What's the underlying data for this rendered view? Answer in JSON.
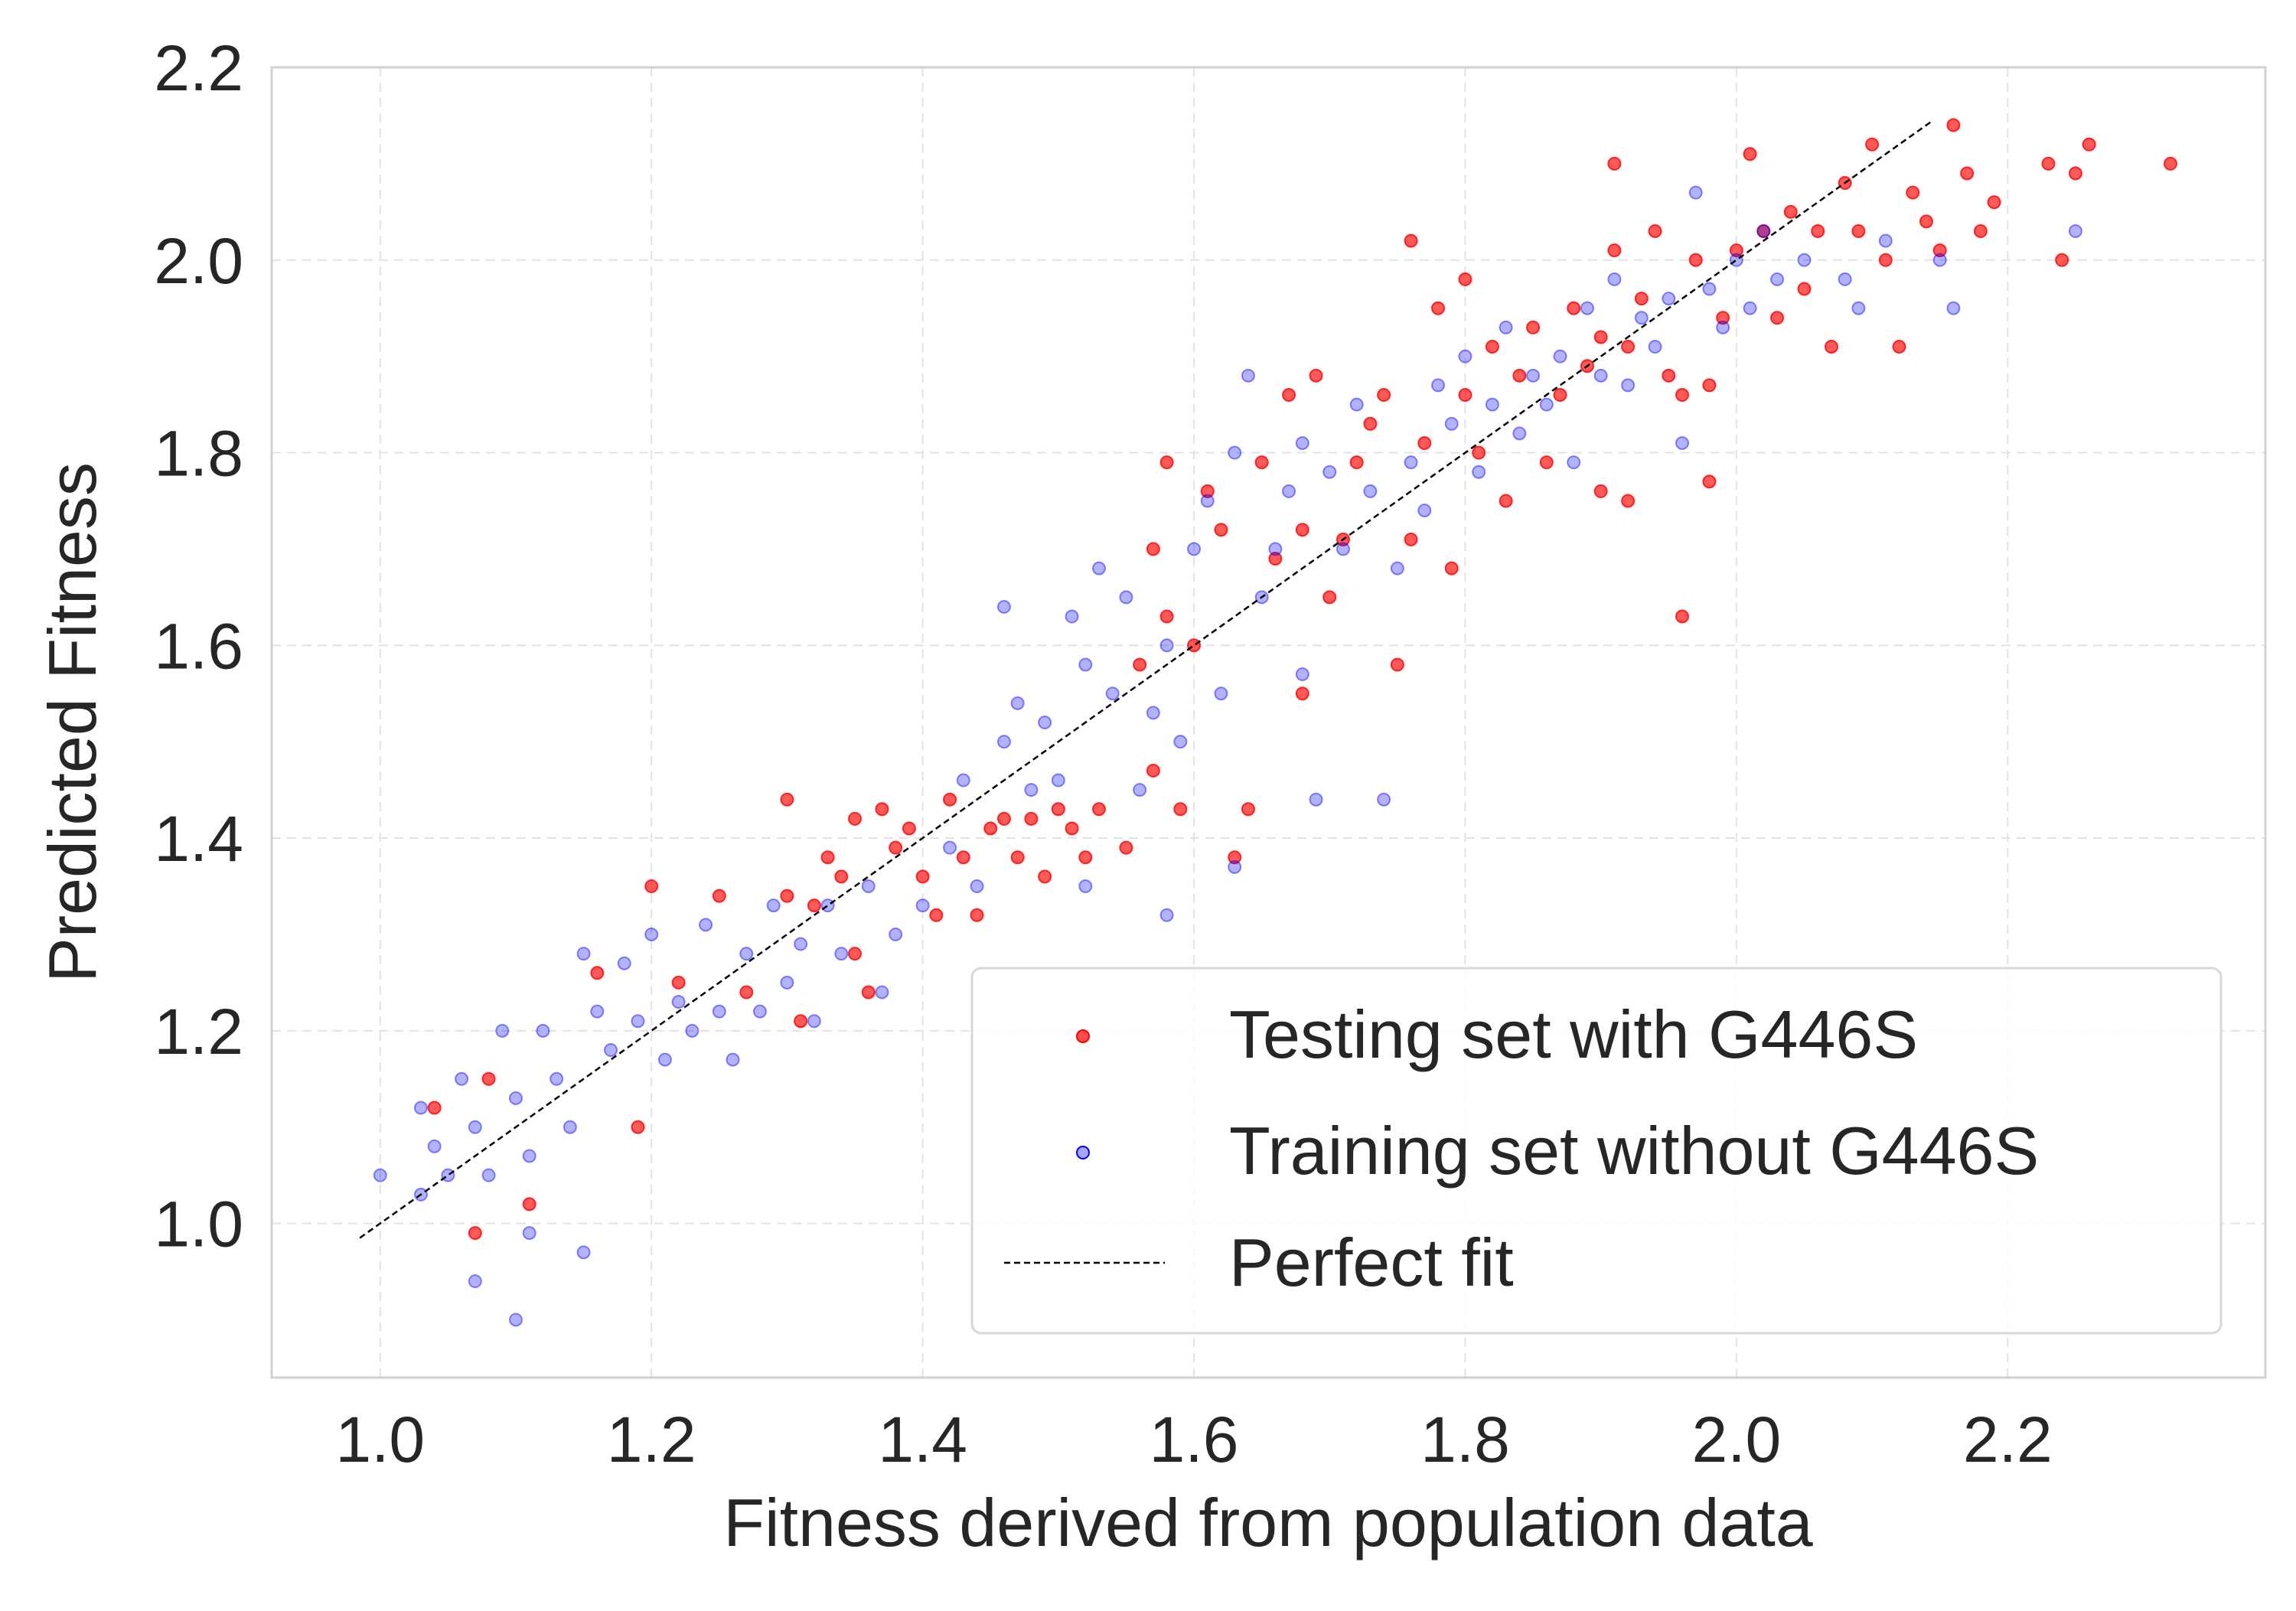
{
  "chart_data": {
    "type": "scatter",
    "xlabel": "Fitness derived from population data",
    "ylabel": "Predicted Fitness",
    "xlim": [
      0.92,
      2.39
    ],
    "ylim": [
      0.84,
      2.2
    ],
    "xticks": [
      "1.0",
      "1.2",
      "1.4",
      "1.6",
      "1.8",
      "2.0",
      "2.2"
    ],
    "yticks": [
      "1.0",
      "1.2",
      "1.4",
      "1.6",
      "1.8",
      "2.0",
      "2.2"
    ],
    "grid": true,
    "legend_position": "bottom-right",
    "colors": {
      "testing": "#ff0000",
      "training": "#0000ff",
      "perfect_fit": "#000000"
    },
    "series": [
      {
        "name": "Testing set with G446S",
        "kind": "scatter",
        "color": "#ff0000",
        "points": [
          [
            1.04,
            1.12
          ],
          [
            1.07,
            0.99
          ],
          [
            1.08,
            1.15
          ],
          [
            1.11,
            1.02
          ],
          [
            1.16,
            1.26
          ],
          [
            1.19,
            1.1
          ],
          [
            1.2,
            1.35
          ],
          [
            1.22,
            1.25
          ],
          [
            1.25,
            1.34
          ],
          [
            1.27,
            1.24
          ],
          [
            1.3,
            1.44
          ],
          [
            1.3,
            1.34
          ],
          [
            1.31,
            1.21
          ],
          [
            1.32,
            1.33
          ],
          [
            1.33,
            1.38
          ],
          [
            1.34,
            1.36
          ],
          [
            1.35,
            1.42
          ],
          [
            1.35,
            1.28
          ],
          [
            1.36,
            1.24
          ],
          [
            1.37,
            1.43
          ],
          [
            1.38,
            1.39
          ],
          [
            1.39,
            1.41
          ],
          [
            1.4,
            1.36
          ],
          [
            1.41,
            1.32
          ],
          [
            1.42,
            1.44
          ],
          [
            1.43,
            1.38
          ],
          [
            1.44,
            1.32
          ],
          [
            1.45,
            1.41
          ],
          [
            1.46,
            1.42
          ],
          [
            1.47,
            1.38
          ],
          [
            1.48,
            1.42
          ],
          [
            1.49,
            1.36
          ],
          [
            1.5,
            1.43
          ],
          [
            1.51,
            1.41
          ],
          [
            1.52,
            1.38
          ],
          [
            1.53,
            1.43
          ],
          [
            1.55,
            1.39
          ],
          [
            1.56,
            1.58
          ],
          [
            1.57,
            1.47
          ],
          [
            1.57,
            1.7
          ],
          [
            1.58,
            1.79
          ],
          [
            1.58,
            1.63
          ],
          [
            1.59,
            1.43
          ],
          [
            1.6,
            1.6
          ],
          [
            1.61,
            1.76
          ],
          [
            1.62,
            1.72
          ],
          [
            1.63,
            1.38
          ],
          [
            1.64,
            1.43
          ],
          [
            1.65,
            1.79
          ],
          [
            1.66,
            1.69
          ],
          [
            1.67,
            1.86
          ],
          [
            1.68,
            1.55
          ],
          [
            1.68,
            1.72
          ],
          [
            1.69,
            1.88
          ],
          [
            1.7,
            1.65
          ],
          [
            1.71,
            1.71
          ],
          [
            1.72,
            1.79
          ],
          [
            1.73,
            1.83
          ],
          [
            1.74,
            1.86
          ],
          [
            1.75,
            1.58
          ],
          [
            1.76,
            1.71
          ],
          [
            1.76,
            2.02
          ],
          [
            1.77,
            1.81
          ],
          [
            1.78,
            1.95
          ],
          [
            1.79,
            1.68
          ],
          [
            1.8,
            1.86
          ],
          [
            1.8,
            1.98
          ],
          [
            1.81,
            1.8
          ],
          [
            1.82,
            1.91
          ],
          [
            1.83,
            1.75
          ],
          [
            1.84,
            1.88
          ],
          [
            1.85,
            1.93
          ],
          [
            1.86,
            1.79
          ],
          [
            1.87,
            1.86
          ],
          [
            1.88,
            1.95
          ],
          [
            1.89,
            1.89
          ],
          [
            1.9,
            1.92
          ],
          [
            1.9,
            1.76
          ],
          [
            1.91,
            2.1
          ],
          [
            1.91,
            2.01
          ],
          [
            1.92,
            1.75
          ],
          [
            1.92,
            1.91
          ],
          [
            1.93,
            1.96
          ],
          [
            1.94,
            2.03
          ],
          [
            1.95,
            1.88
          ],
          [
            1.96,
            1.86
          ],
          [
            1.96,
            1.63
          ],
          [
            1.97,
            2.0
          ],
          [
            1.98,
            1.87
          ],
          [
            1.98,
            1.77
          ],
          [
            1.99,
            1.94
          ],
          [
            2.0,
            2.01
          ],
          [
            2.01,
            2.11
          ],
          [
            2.02,
            2.03
          ],
          [
            2.03,
            1.94
          ],
          [
            2.04,
            2.05
          ],
          [
            2.05,
            1.97
          ],
          [
            2.06,
            2.03
          ],
          [
            2.07,
            1.91
          ],
          [
            2.08,
            2.08
          ],
          [
            2.09,
            2.03
          ],
          [
            2.1,
            2.12
          ],
          [
            2.11,
            2.0
          ],
          [
            2.12,
            1.91
          ],
          [
            2.13,
            2.07
          ],
          [
            2.14,
            2.04
          ],
          [
            2.15,
            2.01
          ],
          [
            2.16,
            2.14
          ],
          [
            2.17,
            2.09
          ],
          [
            2.18,
            2.03
          ],
          [
            2.19,
            2.06
          ],
          [
            2.23,
            2.1
          ],
          [
            2.24,
            2.0
          ],
          [
            2.25,
            2.09
          ],
          [
            2.26,
            2.12
          ],
          [
            2.32,
            2.1
          ]
        ]
      },
      {
        "name": "Training set without G446S",
        "kind": "scatter",
        "color": "#0000ff",
        "points": [
          [
            1.0,
            1.05
          ],
          [
            1.03,
            1.03
          ],
          [
            1.03,
            1.12
          ],
          [
            1.04,
            1.08
          ],
          [
            1.05,
            1.05
          ],
          [
            1.06,
            1.15
          ],
          [
            1.07,
            1.1
          ],
          [
            1.07,
            0.94
          ],
          [
            1.08,
            1.05
          ],
          [
            1.09,
            1.2
          ],
          [
            1.1,
            1.13
          ],
          [
            1.1,
            0.9
          ],
          [
            1.11,
            0.99
          ],
          [
            1.11,
            1.07
          ],
          [
            1.12,
            1.2
          ],
          [
            1.13,
            1.15
          ],
          [
            1.14,
            1.1
          ],
          [
            1.15,
            1.28
          ],
          [
            1.15,
            0.97
          ],
          [
            1.16,
            1.22
          ],
          [
            1.17,
            1.18
          ],
          [
            1.18,
            1.27
          ],
          [
            1.19,
            1.21
          ],
          [
            1.2,
            1.3
          ],
          [
            1.21,
            1.17
          ],
          [
            1.22,
            1.23
          ],
          [
            1.23,
            1.2
          ],
          [
            1.24,
            1.31
          ],
          [
            1.25,
            1.22
          ],
          [
            1.26,
            1.17
          ],
          [
            1.27,
            1.28
          ],
          [
            1.28,
            1.22
          ],
          [
            1.29,
            1.33
          ],
          [
            1.3,
            1.25
          ],
          [
            1.31,
            1.29
          ],
          [
            1.32,
            1.21
          ],
          [
            1.33,
            1.33
          ],
          [
            1.34,
            1.28
          ],
          [
            1.36,
            1.35
          ],
          [
            1.37,
            1.24
          ],
          [
            1.38,
            1.3
          ],
          [
            1.4,
            1.33
          ],
          [
            1.42,
            1.39
          ],
          [
            1.43,
            1.46
          ],
          [
            1.44,
            1.35
          ],
          [
            1.46,
            1.64
          ],
          [
            1.46,
            1.5
          ],
          [
            1.47,
            1.54
          ],
          [
            1.48,
            1.45
          ],
          [
            1.49,
            1.52
          ],
          [
            1.5,
            1.46
          ],
          [
            1.51,
            1.63
          ],
          [
            1.52,
            1.58
          ],
          [
            1.52,
            1.35
          ],
          [
            1.53,
            1.68
          ],
          [
            1.54,
            1.55
          ],
          [
            1.55,
            1.65
          ],
          [
            1.56,
            1.45
          ],
          [
            1.57,
            1.53
          ],
          [
            1.58,
            1.32
          ],
          [
            1.58,
            1.6
          ],
          [
            1.59,
            1.5
          ],
          [
            1.6,
            1.7
          ],
          [
            1.61,
            1.75
          ],
          [
            1.62,
            1.55
          ],
          [
            1.63,
            1.8
          ],
          [
            1.63,
            1.37
          ],
          [
            1.64,
            1.88
          ],
          [
            1.65,
            1.65
          ],
          [
            1.66,
            1.7
          ],
          [
            1.67,
            1.76
          ],
          [
            1.68,
            1.57
          ],
          [
            1.68,
            1.81
          ],
          [
            1.69,
            1.44
          ],
          [
            1.7,
            1.78
          ],
          [
            1.71,
            1.7
          ],
          [
            1.72,
            1.85
          ],
          [
            1.73,
            1.76
          ],
          [
            1.74,
            1.44
          ],
          [
            1.75,
            1.68
          ],
          [
            1.76,
            1.79
          ],
          [
            1.77,
            1.74
          ],
          [
            1.78,
            1.87
          ],
          [
            1.79,
            1.83
          ],
          [
            1.8,
            1.9
          ],
          [
            1.81,
            1.78
          ],
          [
            1.82,
            1.85
          ],
          [
            1.83,
            1.93
          ],
          [
            1.84,
            1.82
          ],
          [
            1.85,
            1.88
          ],
          [
            1.86,
            1.85
          ],
          [
            1.87,
            1.9
          ],
          [
            1.88,
            1.79
          ],
          [
            1.89,
            1.95
          ],
          [
            1.9,
            1.88
          ],
          [
            1.91,
            1.98
          ],
          [
            1.92,
            1.87
          ],
          [
            1.93,
            1.94
          ],
          [
            1.94,
            1.91
          ],
          [
            1.95,
            1.96
          ],
          [
            1.96,
            1.81
          ],
          [
            1.97,
            2.07
          ],
          [
            1.98,
            1.97
          ],
          [
            1.99,
            1.93
          ],
          [
            2.0,
            2.0
          ],
          [
            2.01,
            1.95
          ],
          [
            2.02,
            2.03
          ],
          [
            2.03,
            1.98
          ],
          [
            2.05,
            2.0
          ],
          [
            2.08,
            1.98
          ],
          [
            2.09,
            1.95
          ],
          [
            2.11,
            2.02
          ],
          [
            2.15,
            2.0
          ],
          [
            2.16,
            1.95
          ],
          [
            2.25,
            2.03
          ]
        ]
      },
      {
        "name": "Perfect fit",
        "kind": "line",
        "color": "#000000",
        "points": [
          [
            0.985,
            0.985
          ],
          [
            2.145,
            2.145
          ]
        ]
      }
    ]
  }
}
